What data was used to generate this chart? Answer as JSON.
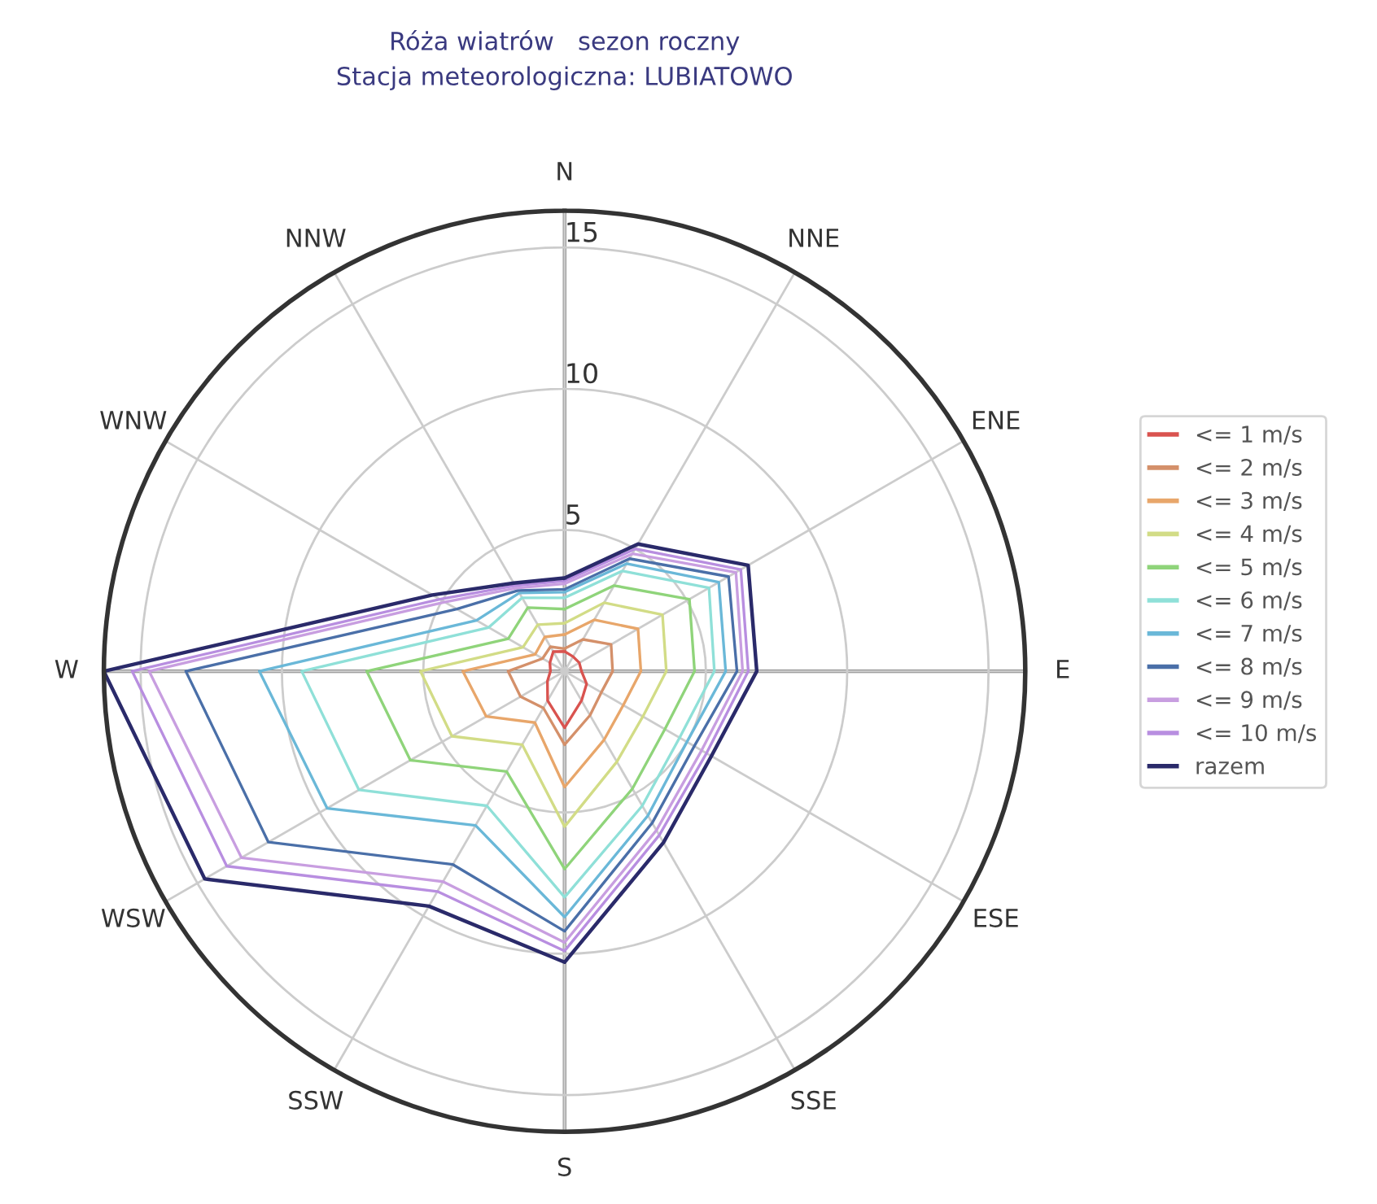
{
  "chart_data": {
    "type": "radar",
    "title": "Róża wiatrów   sezon roczny",
    "subtitle": "Stacja meteorologiczna: LUBIATOWO",
    "categories": [
      "N",
      "NNE",
      "ENE",
      "E",
      "ESE",
      "SSE",
      "S",
      "SSW",
      "WSW",
      "W",
      "WNW",
      "NNW"
    ],
    "ylim": [
      0,
      16.3
    ],
    "yticks": [
      5,
      10,
      15
    ],
    "grid": true,
    "legend": "right",
    "marker": "none",
    "line_style": "solid",
    "series": [
      {
        "name": "<= 1 m/s",
        "color": "#d9534f",
        "values": [
          0.7,
          0.6,
          0.6,
          0.6,
          0.9,
          1.2,
          2.0,
          1.2,
          0.7,
          0.5,
          0.6,
          0.8
        ]
      },
      {
        "name": "<= 2 m/s",
        "color": "#d4906a",
        "values": [
          0.8,
          1.3,
          1.9,
          1.7,
          1.5,
          1.8,
          2.6,
          1.5,
          1.8,
          2.0,
          0.9,
          1.0
        ]
      },
      {
        "name": "<= 3 m/s",
        "color": "#e8a66a",
        "values": [
          1.3,
          2.1,
          3.0,
          2.7,
          2.4,
          2.8,
          4.1,
          2.1,
          3.2,
          3.6,
          1.2,
          1.4
        ]
      },
      {
        "name": "<= 4 m/s",
        "color": "#d2dc86",
        "values": [
          1.7,
          2.8,
          4.0,
          3.6,
          3.2,
          3.7,
          5.5,
          3.0,
          4.6,
          5.1,
          1.7,
          1.9
        ]
      },
      {
        "name": "<= 5 m/s",
        "color": "#8fd47a",
        "values": [
          2.2,
          3.5,
          5.1,
          4.6,
          4.1,
          4.8,
          7.0,
          4.1,
          6.3,
          7.0,
          2.3,
          2.6
        ]
      },
      {
        "name": "<= 6 m/s",
        "color": "#8fe0d8",
        "values": [
          2.6,
          4.1,
          5.9,
          5.3,
          4.7,
          5.5,
          8.0,
          5.5,
          8.4,
          9.3,
          3.1,
          3.0
        ]
      },
      {
        "name": "<= 7 m/s",
        "color": "#6ab8d8",
        "values": [
          2.8,
          4.4,
          6.3,
          5.7,
          5.0,
          5.9,
          8.7,
          6.3,
          9.7,
          10.8,
          3.6,
          3.2
        ]
      },
      {
        "name": "<= 8 m/s",
        "color": "#4a6fa8",
        "values": [
          2.9,
          4.6,
          6.7,
          6.1,
          5.3,
          6.2,
          9.2,
          7.9,
          12.1,
          13.4,
          4.4,
          3.3
        ]
      },
      {
        "name": "<= 9 m/s",
        "color": "#c89ee0",
        "values": [
          3.1,
          4.8,
          7.0,
          6.3,
          5.6,
          6.5,
          9.6,
          8.6,
          13.2,
          14.7,
          4.9,
          3.4
        ]
      },
      {
        "name": "<= 10 m/s",
        "color": "#b88ee0",
        "values": [
          3.2,
          5.0,
          7.2,
          6.5,
          5.8,
          6.7,
          9.9,
          9.0,
          13.8,
          15.3,
          5.1,
          3.5
        ]
      },
      {
        "name": "razem",
        "color": "#2a2a6a",
        "values": [
          3.3,
          5.2,
          7.5,
          6.8,
          6.0,
          7.0,
          10.3,
          9.6,
          14.7,
          16.3,
          5.4,
          3.6
        ]
      }
    ]
  }
}
